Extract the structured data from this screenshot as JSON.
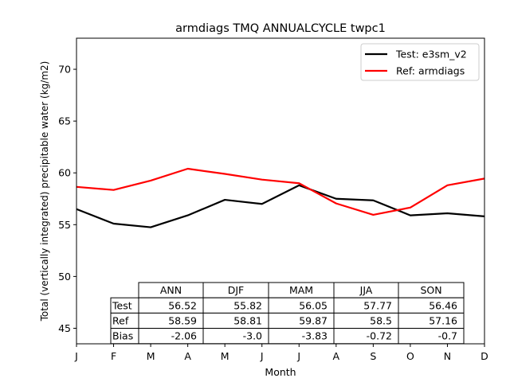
{
  "chart_data": {
    "type": "line",
    "title": "armdiags TMQ ANNUALCYCLE twpc1",
    "xlabel": "Month",
    "ylabel": "Total (vertically integrated) precipitable water (kg/m2)",
    "x": [
      "J",
      "F",
      "M",
      "A",
      "M",
      "J",
      "J",
      "A",
      "S",
      "O",
      "N",
      "D"
    ],
    "ylim": [
      43.5,
      73
    ],
    "yticks": [
      45,
      50,
      55,
      60,
      65,
      70
    ],
    "grid": false,
    "legend_position": "top-right",
    "series": [
      {
        "name": "Test: e3sm_v2",
        "color": "#000000",
        "values": [
          56.5,
          55.1,
          54.75,
          55.9,
          57.4,
          57.0,
          58.8,
          57.5,
          57.35,
          55.9,
          56.1,
          55.8
        ]
      },
      {
        "name": "Ref: armdiags",
        "color": "#ff0000",
        "values": [
          58.65,
          58.35,
          59.25,
          60.4,
          59.9,
          59.35,
          59.0,
          57.05,
          55.95,
          56.65,
          58.8,
          59.45
        ]
      }
    ],
    "table": {
      "columns": [
        "ANN",
        "DJF",
        "MAM",
        "JJA",
        "SON"
      ],
      "rows": [
        {
          "label": "Test",
          "values": [
            "56.52",
            "55.82",
            "56.05",
            "57.77",
            "56.46"
          ]
        },
        {
          "label": "Ref",
          "values": [
            "58.59",
            "58.81",
            "59.87",
            "58.5",
            "57.16"
          ]
        },
        {
          "label": "Bias",
          "values": [
            "-2.06",
            "-3.0",
            "-3.83",
            "-0.72",
            "-0.7"
          ]
        }
      ]
    }
  }
}
